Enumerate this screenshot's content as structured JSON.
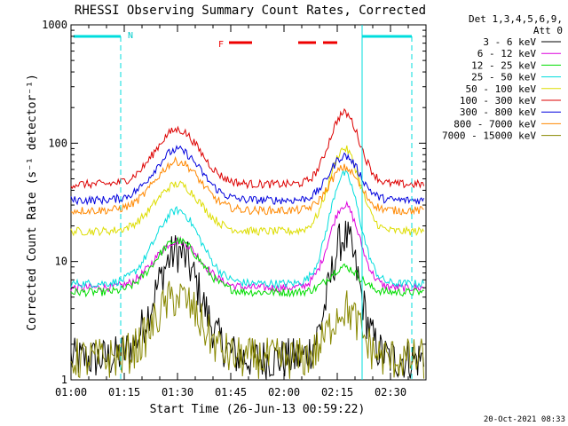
{
  "chart_data": {
    "type": "line",
    "title": "RHESSI Observing Summary Count Rates, Corrected",
    "xlabel": "Start Time (26-Jun-13 00:59:22)",
    "ylabel": "Corrected Count Rate (s⁻¹ detector⁻¹)",
    "y_scale": "log",
    "ylim": [
      1,
      1000
    ],
    "xlim_minutes": [
      0,
      100
    ],
    "x_tick_labels": [
      "01:00",
      "01:15",
      "01:30",
      "01:45",
      "02:00",
      "02:15",
      "02:30"
    ],
    "y_tick_labels": [
      "1",
      "10",
      "100",
      "1000"
    ],
    "header_text": [
      "Det 1,3,4,5,6,9,",
      "Att 0"
    ],
    "annotations": {
      "N": "N",
      "F": "F"
    },
    "footer": "20-Oct-2021 08:33",
    "series": [
      {
        "name": "3 - 6 keV",
        "color": "#000000",
        "baseline": 1.5,
        "peak1": 12,
        "peak2": 16
      },
      {
        "name": "6 - 12 keV",
        "color": "#dd00dd",
        "baseline": 6,
        "peak1": 15,
        "peak2": 30
      },
      {
        "name": "12 - 25 keV",
        "color": "#00dd00",
        "baseline": 5.5,
        "peak1": 15,
        "peak2": 9
      },
      {
        "name": "25 - 50 keV",
        "color": "#00dddd",
        "baseline": 6.5,
        "peak1": 27,
        "peak2": 55
      },
      {
        "name": "50 - 100 keV",
        "color": "#dddd00",
        "baseline": 18,
        "peak1": 45,
        "peak2": 90
      },
      {
        "name": "100 - 300 keV",
        "color": "#dd0000",
        "baseline": 45,
        "peak1": 130,
        "peak2": 180
      },
      {
        "name": "300 - 800 keV",
        "color": "#0000dd",
        "baseline": 33,
        "peak1": 88,
        "peak2": 78
      },
      {
        "name": "800 - 7000 keV",
        "color": "#ff8800",
        "baseline": 27,
        "peak1": 70,
        "peak2": 62
      },
      {
        "name": "7000 - 15000 keV",
        "color": "#888800",
        "baseline": 1.5,
        "peak1": 5,
        "peak2": 4
      }
    ]
  }
}
